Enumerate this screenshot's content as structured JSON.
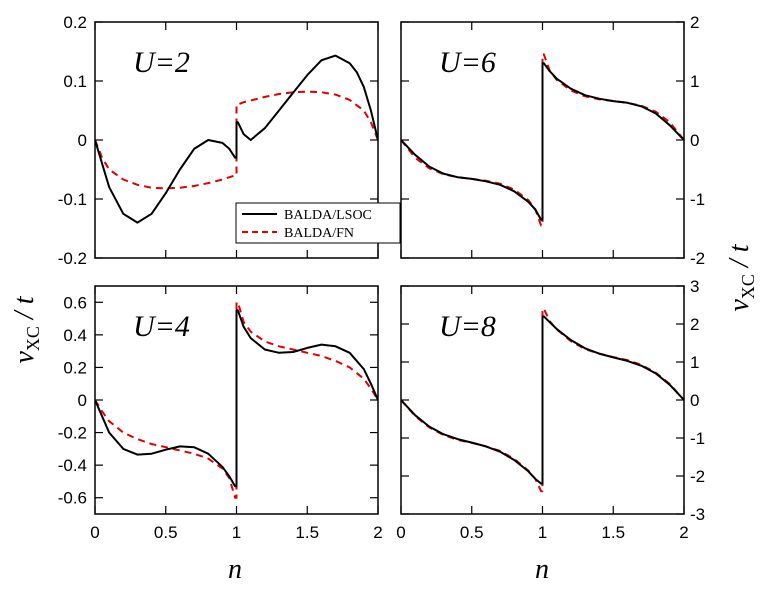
{
  "chart_data": {
    "type": "line",
    "xlabel": "n",
    "ylabel_left": "v_XC / t",
    "ylabel_parts": {
      "main": "v",
      "sub": "XC",
      "rest": " / t"
    },
    "legend": [
      {
        "label": "BALDA/LSOC",
        "color": "#000000",
        "style": "solid"
      },
      {
        "label": "BALDA/FN",
        "color": "#e00000",
        "style": "dashed"
      }
    ],
    "panels": [
      {
        "id": "U2",
        "label": "U=2",
        "U": 2,
        "ylim": [
          -0.2,
          0.2
        ],
        "xlim": [
          0,
          2
        ],
        "yticks": [
          -0.2,
          -0.1,
          0,
          0.1,
          0.2
        ],
        "ytick_labels": [
          "-0.2",
          "-0.1",
          "0",
          "0.1",
          "0.2"
        ],
        "xticks": [
          0,
          0.5,
          1,
          1.5,
          2
        ],
        "xtick_labels": [],
        "yaxis": "left",
        "series": [
          {
            "name": "BALDA/LSOC",
            "x": [
              0,
              0.1,
              0.2,
              0.3,
              0.4,
              0.5,
              0.6,
              0.7,
              0.8,
              0.9,
              0.95,
              0.99,
              1.0,
              1.01,
              1.05,
              1.1,
              1.2,
              1.3,
              1.4,
              1.5,
              1.6,
              1.7,
              1.8,
              1.85,
              1.9,
              1.95,
              2.0
            ],
            "y": [
              0,
              -0.08,
              -0.125,
              -0.14,
              -0.125,
              -0.09,
              -0.05,
              -0.015,
              0,
              -0.005,
              -0.015,
              -0.03,
              null,
              0.03,
              0.01,
              0.0,
              0.02,
              0.05,
              0.08,
              0.11,
              0.135,
              0.143,
              0.13,
              0.115,
              0.09,
              0.05,
              0
            ]
          },
          {
            "name": "BALDA/FN",
            "x": [
              0,
              0.05,
              0.1,
              0.2,
              0.3,
              0.4,
              0.5,
              0.6,
              0.7,
              0.8,
              0.9,
              0.95,
              0.99,
              1.0,
              1.01,
              1.05,
              1.1,
              1.2,
              1.3,
              1.4,
              1.5,
              1.6,
              1.7,
              1.8,
              1.9,
              1.95,
              2.0
            ],
            "y": [
              0,
              -0.03,
              -0.05,
              -0.067,
              -0.076,
              -0.081,
              -0.082,
              -0.081,
              -0.078,
              -0.073,
              -0.067,
              -0.063,
              -0.06,
              null,
              0.06,
              0.064,
              0.067,
              0.073,
              0.078,
              0.081,
              0.082,
              0.081,
              0.077,
              0.068,
              0.05,
              0.03,
              0
            ]
          }
        ]
      },
      {
        "id": "U6",
        "label": "U=6",
        "U": 6,
        "ylim": [
          -2,
          2
        ],
        "xlim": [
          0,
          2
        ],
        "yticks": [
          -2,
          -1,
          0,
          1,
          2
        ],
        "ytick_labels": [
          "-2",
          "-1",
          "0",
          "1",
          "2"
        ],
        "xticks": [
          0,
          0.5,
          1,
          1.5,
          2
        ],
        "xtick_labels": [],
        "yaxis": "right",
        "series": [
          {
            "name": "BALDA/LSOC",
            "x": [
              0,
              0.1,
              0.2,
              0.3,
              0.4,
              0.5,
              0.6,
              0.7,
              0.8,
              0.9,
              0.95,
              0.99,
              1.0,
              1.01,
              1.05,
              1.1,
              1.2,
              1.3,
              1.4,
              1.5,
              1.6,
              1.7,
              1.8,
              1.9,
              2.0
            ],
            "y": [
              0,
              -0.25,
              -0.45,
              -0.57,
              -0.63,
              -0.66,
              -0.7,
              -0.76,
              -0.87,
              -1.05,
              -1.18,
              -1.35,
              null,
              1.3,
              1.17,
              1.04,
              0.87,
              0.76,
              0.7,
              0.66,
              0.63,
              0.57,
              0.45,
              0.25,
              0
            ]
          },
          {
            "name": "BALDA/FN",
            "x": [
              0,
              0.1,
              0.2,
              0.3,
              0.4,
              0.5,
              0.6,
              0.7,
              0.8,
              0.9,
              0.95,
              0.99,
              1.0,
              1.01,
              1.05,
              1.1,
              1.2,
              1.3,
              1.4,
              1.5,
              1.6,
              1.7,
              1.8,
              1.9,
              2.0
            ],
            "y": [
              0,
              -0.3,
              -0.48,
              -0.58,
              -0.63,
              -0.66,
              -0.69,
              -0.74,
              -0.84,
              -1.02,
              -1.18,
              -1.45,
              null,
              1.45,
              1.18,
              1.02,
              0.84,
              0.74,
              0.69,
              0.66,
              0.63,
              0.58,
              0.48,
              0.3,
              0
            ]
          }
        ]
      },
      {
        "id": "U4",
        "label": "U=4",
        "U": 4,
        "ylim": [
          -0.7,
          0.7
        ],
        "xlim": [
          0,
          2
        ],
        "yticks": [
          -0.6,
          -0.4,
          -0.2,
          0,
          0.2,
          0.4,
          0.6
        ],
        "ytick_labels": [
          "-0.6",
          "-0.4",
          "-0.2",
          "0",
          "0.2",
          "0.4",
          "0.6"
        ],
        "xticks": [
          0,
          0.5,
          1,
          1.5,
          2
        ],
        "xtick_labels": [
          "0",
          "0.5",
          "1",
          "1.5",
          "2"
        ],
        "yaxis": "left",
        "series": [
          {
            "name": "BALDA/LSOC",
            "x": [
              0,
              0.05,
              0.1,
              0.2,
              0.3,
              0.4,
              0.5,
              0.6,
              0.7,
              0.8,
              0.9,
              0.95,
              0.99,
              1.0,
              1.01,
              1.05,
              1.1,
              1.2,
              1.3,
              1.4,
              1.5,
              1.6,
              1.7,
              1.8,
              1.9,
              1.95,
              2.0
            ],
            "y": [
              0,
              -0.1,
              -0.2,
              -0.3,
              -0.335,
              -0.33,
              -0.305,
              -0.285,
              -0.29,
              -0.33,
              -0.41,
              -0.47,
              -0.53,
              null,
              0.55,
              0.45,
              0.38,
              0.31,
              0.29,
              0.295,
              0.32,
              0.34,
              0.33,
              0.29,
              0.19,
              0.1,
              0
            ]
          },
          {
            "name": "BALDA/FN",
            "x": [
              0,
              0.05,
              0.1,
              0.2,
              0.3,
              0.4,
              0.5,
              0.6,
              0.7,
              0.8,
              0.9,
              0.95,
              0.99,
              1.0,
              1.01,
              1.05,
              1.1,
              1.2,
              1.3,
              1.4,
              1.5,
              1.6,
              1.7,
              1.8,
              1.9,
              1.95,
              2.0
            ],
            "y": [
              0,
              -0.07,
              -0.13,
              -0.2,
              -0.24,
              -0.27,
              -0.29,
              -0.31,
              -0.33,
              -0.36,
              -0.42,
              -0.48,
              -0.6,
              null,
              0.6,
              0.48,
              0.42,
              0.36,
              0.33,
              0.31,
              0.29,
              0.27,
              0.24,
              0.2,
              0.13,
              0.07,
              0
            ]
          }
        ]
      },
      {
        "id": "U8",
        "label": "U=8",
        "U": 8,
        "ylim": [
          -3,
          3
        ],
        "xlim": [
          0,
          2
        ],
        "yticks": [
          -3,
          -2,
          -1,
          0,
          1,
          2,
          3
        ],
        "ytick_labels": [
          "-3",
          "-2",
          "-1",
          "0",
          "1",
          "2",
          "3"
        ],
        "xticks": [
          0,
          0.5,
          1,
          1.5,
          2
        ],
        "xtick_labels": [
          "0",
          "0.5",
          "1",
          "1.5",
          "2"
        ],
        "yaxis": "right",
        "series": [
          {
            "name": "BALDA/LSOC",
            "x": [
              0,
              0.1,
              0.2,
              0.3,
              0.4,
              0.5,
              0.6,
              0.7,
              0.8,
              0.9,
              0.95,
              0.99,
              1.0,
              1.01,
              1.05,
              1.1,
              1.2,
              1.3,
              1.4,
              1.5,
              1.6,
              1.7,
              1.8,
              1.9,
              2.0
            ],
            "y": [
              0,
              -0.4,
              -0.7,
              -0.9,
              -1.03,
              -1.12,
              -1.22,
              -1.36,
              -1.58,
              -1.88,
              -2.08,
              -2.2,
              null,
              2.2,
              2.05,
              1.87,
              1.58,
              1.36,
              1.22,
              1.12,
              1.03,
              0.9,
              0.7,
              0.4,
              0
            ]
          },
          {
            "name": "BALDA/FN",
            "x": [
              0,
              0.1,
              0.2,
              0.3,
              0.4,
              0.5,
              0.6,
              0.7,
              0.8,
              0.9,
              0.95,
              0.99,
              1.0,
              1.01,
              1.05,
              1.1,
              1.2,
              1.3,
              1.4,
              1.5,
              1.6,
              1.7,
              1.8,
              1.9,
              2.0
            ],
            "y": [
              0,
              -0.42,
              -0.72,
              -0.92,
              -1.05,
              -1.13,
              -1.22,
              -1.34,
              -1.55,
              -1.86,
              -2.08,
              -2.4,
              null,
              2.4,
              2.08,
              1.86,
              1.55,
              1.34,
              1.22,
              1.13,
              1.05,
              0.92,
              0.72,
              0.42,
              0
            ]
          }
        ]
      }
    ]
  }
}
